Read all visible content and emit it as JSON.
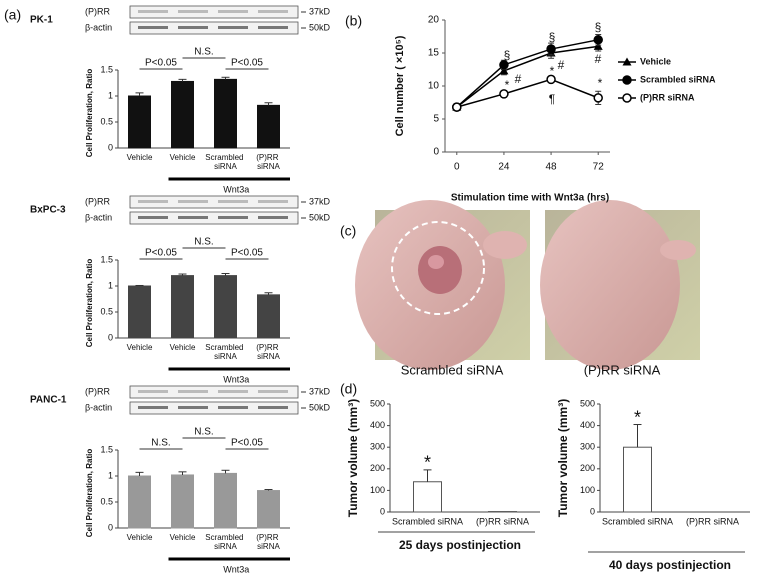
{
  "panels": [
    "(a)",
    "(b)",
    "(c)",
    "(d)"
  ],
  "photos": {
    "captions": [
      "Scrambled siRNA",
      "(P)RR siRNA"
    ]
  },
  "chart_data": [
    {
      "type": "bar",
      "title": "PK-1",
      "blot": {
        "rows": [
          "(P)RR",
          "β-actin"
        ],
        "sizes": [
          "37kD",
          "50kD"
        ]
      },
      "ylabel": "Cell Proliferation, Ratio",
      "categories": [
        "Vehicle",
        "Vehicle",
        "Scrambled siRNA",
        "(P)RR siRNA"
      ],
      "values": [
        1.0,
        1.28,
        1.32,
        0.82
      ],
      "errors": [
        0.06,
        0.04,
        0.04,
        0.05
      ],
      "color": "#111111",
      "ylim": [
        0,
        1.5
      ],
      "yticks": [
        0,
        0.5,
        1,
        1.5
      ],
      "comparisons": [
        "P<0.05",
        "N.S.",
        "P<0.05"
      ],
      "group_label": "Wnt3a"
    },
    {
      "type": "bar",
      "title": "BxPC-3",
      "blot": {
        "rows": [
          "(P)RR",
          "β-actin"
        ],
        "sizes": [
          "37kD",
          "50kD"
        ]
      },
      "ylabel": "Cell Proliferation, Ratio",
      "categories": [
        "Vehicle",
        "Vehicle",
        "Scrambled siRNA",
        "(P)RR siRNA"
      ],
      "values": [
        1.0,
        1.2,
        1.2,
        0.83
      ],
      "errors": [
        0.01,
        0.03,
        0.04,
        0.04
      ],
      "color": "#444444",
      "ylim": [
        0,
        1.5
      ],
      "yticks": [
        0,
        0.5,
        1,
        1.5
      ],
      "comparisons": [
        "P<0.05",
        "N.S.",
        "P<0.05"
      ],
      "group_label": "Wnt3a"
    },
    {
      "type": "bar",
      "title": "PANC-1",
      "blot": {
        "rows": [
          "(P)RR",
          "β-actin"
        ],
        "sizes": [
          "37kD",
          "50kD"
        ]
      },
      "ylabel": "Cell Proliferation, Ratio",
      "categories": [
        "Vehicle",
        "Vehicle",
        "Scrambled siRNA",
        "(P)RR siRNA"
      ],
      "values": [
        1.0,
        1.02,
        1.05,
        0.72
      ],
      "errors": [
        0.07,
        0.06,
        0.06,
        0.02
      ],
      "color": "#999999",
      "ylim": [
        0,
        1.5
      ],
      "yticks": [
        0,
        0.5,
        1,
        1.5
      ],
      "comparisons": [
        "N.S.",
        "N.S.",
        "P<0.05"
      ],
      "group_label": "Wnt3a"
    },
    {
      "type": "line",
      "ylabel": "Cell number ( ×10⁵)",
      "xlabel": "Stimulation time with Wnt3a (hrs)",
      "x": [
        0,
        24,
        48,
        72
      ],
      "xlim": [
        -6,
        78
      ],
      "xticks": [
        0,
        24,
        48,
        72
      ],
      "ylim": [
        0,
        20
      ],
      "yticks": [
        0,
        5,
        10,
        15,
        20
      ],
      "series": [
        {
          "name": "Vehicle",
          "color": "#000000",
          "marker": "triangle",
          "values": [
            6.8,
            12.3,
            15.0,
            16.0
          ],
          "errors": [
            0.5,
            0.6,
            0.8,
            0.7
          ]
        },
        {
          "name": "Scrambled siRNA",
          "color": "#000000",
          "marker": "circle",
          "values": [
            6.8,
            13.2,
            15.6,
            17.0
          ],
          "errors": [
            0.5,
            0.7,
            0.9,
            0.8
          ]
        },
        {
          "name": "(P)RR siRNA",
          "color": "#000000",
          "marker": "open-circle",
          "values": [
            6.8,
            8.8,
            11.0,
            8.2
          ],
          "errors": [
            0.5,
            0.5,
            0.5,
            1.0
          ]
        }
      ],
      "annotations": [
        "§",
        "#",
        "*",
        "§",
        "#",
        "*",
        "¶",
        "§",
        "#",
        "*"
      ]
    },
    {
      "type": "bar",
      "title": "25 days postinjection",
      "ylabel": "Tumor volume (mm³)",
      "categories": [
        "Scrambled siRNA",
        "(P)RR siRNA"
      ],
      "values": [
        140,
        2
      ],
      "errors": [
        55,
        0
      ],
      "color": "#ffffff",
      "ylim": [
        0,
        500
      ],
      "yticks": [
        0,
        100,
        200,
        300,
        400,
        500
      ],
      "annotations": [
        "*"
      ]
    },
    {
      "type": "bar",
      "title": "40 days postinjection",
      "ylabel": "Tumor volume (mm³)",
      "categories": [
        "Scrambled siRNA",
        "(P)RR siRNA"
      ],
      "values": [
        300,
        0
      ],
      "errors": [
        105,
        0
      ],
      "color": "#ffffff",
      "ylim": [
        0,
        500
      ],
      "yticks": [
        0,
        100,
        200,
        300,
        400,
        500
      ],
      "annotations": [
        "*"
      ]
    }
  ]
}
